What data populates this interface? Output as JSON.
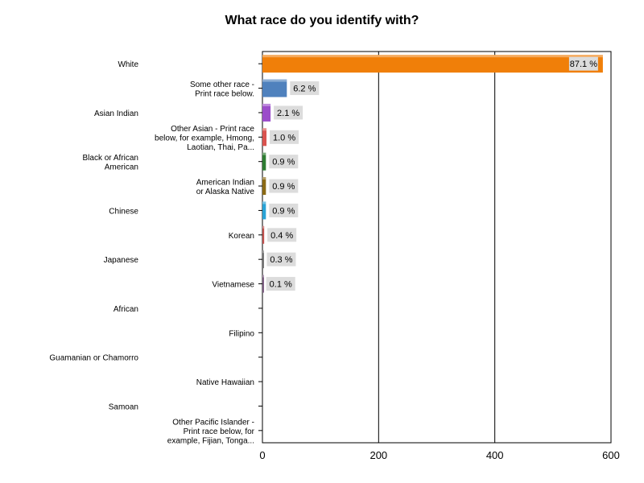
{
  "chart_data": {
    "type": "bar",
    "orientation": "horizontal",
    "title": "What race do you identify with?",
    "xlabel": "",
    "ylabel": "",
    "xlim": [
      0,
      600
    ],
    "x_ticks": [
      "0",
      "200",
      "400",
      "600"
    ],
    "grid": "vertical",
    "legend": "none",
    "categories": [
      "White",
      "Some other race - Print race below.",
      "Asian Indian",
      "Other Asian - Print race below, for example, Hmong, Laotian, Thai, Pa...",
      "Black or African American",
      "American Indian or Alaska Native",
      "Chinese",
      "Korean",
      "Japanese",
      "Vietnamese",
      "African",
      "Filipino",
      "Guamanian or Chamorro",
      "Native Hawaiian",
      "Samoan",
      "Other Pacific Islander - Print race below, for example, Fijian, Tonga..."
    ],
    "category_label_lines": [
      [
        "White"
      ],
      [
        "Some other race -",
        "Print race below."
      ],
      [
        "Asian Indian"
      ],
      [
        "Other Asian - Print race",
        "below, for example, Hmong,",
        "Laotian, Thai, Pa..."
      ],
      [
        "Black or African",
        "American"
      ],
      [
        "American Indian",
        "or Alaska Native"
      ],
      [
        "Chinese"
      ],
      [
        "Korean"
      ],
      [
        "Japanese"
      ],
      [
        "Vietnamese"
      ],
      [
        "African"
      ],
      [
        "Filipino"
      ],
      [
        "Guamanian or Chamorro"
      ],
      [
        "Native Hawaiian"
      ],
      [
        "Samoan"
      ],
      [
        "Other Pacific Islander -",
        "Print race below, for",
        "example, Fijian, Tonga..."
      ]
    ],
    "values": [
      586,
      42,
      14,
      7,
      6,
      6,
      6,
      3,
      2,
      1,
      0,
      0,
      0,
      0,
      0,
      0
    ],
    "data_labels": [
      "87.1 %",
      "6.2 %",
      "2.1 %",
      "1.0 %",
      "0.9 %",
      "0.9 %",
      "0.9 %",
      "0.4 %",
      "0.3 %",
      "0.1 %",
      "",
      "",
      "",
      "",
      "",
      ""
    ],
    "colors": [
      "#f07f09",
      "#4f81bd",
      "#9b4dca",
      "#d9534f",
      "#2e7d32",
      "#8b6914",
      "#29a3d6",
      "#c0504d",
      "#777777",
      "#7f6084",
      "#888888",
      "#888888",
      "#888888",
      "#888888",
      "#888888",
      "#888888"
    ]
  }
}
